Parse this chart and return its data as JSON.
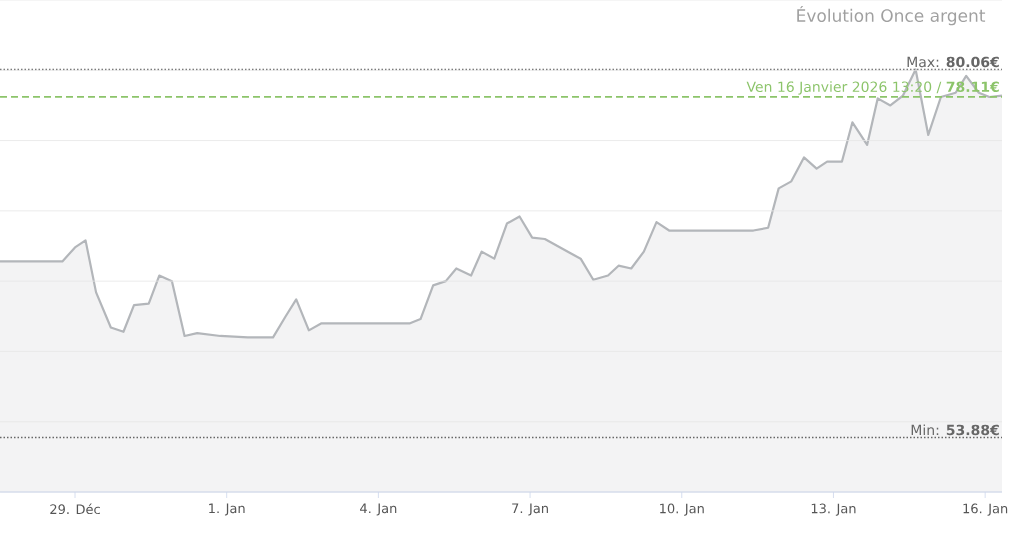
{
  "chart_data": {
    "type": "area",
    "title": "Évolution Once argent",
    "x": [
      "2025-12-27T12:24",
      "2025-12-28T18:00",
      "2025-12-29T00:00",
      "2025-12-29T05:00",
      "2025-12-29T10:00",
      "2025-12-29T17:00",
      "2025-12-29T23:00",
      "2025-12-30T04:00",
      "2025-12-30T11:00",
      "2025-12-30T16:00",
      "2025-12-30T22:00",
      "2025-12-31T04:00",
      "2025-12-31T10:00",
      "2025-12-31T21:00",
      "2026-01-01T10:00",
      "2026-01-01T22:00",
      "2026-01-02T04:00",
      "2026-01-02T09:00",
      "2026-01-02T15:00",
      "2026-01-02T21:00",
      "2026-01-03T10:00",
      "2026-01-04T15:00",
      "2026-01-04T20:00",
      "2026-01-05T02:00",
      "2026-01-05T08:00",
      "2026-01-05T13:00",
      "2026-01-05T20:00",
      "2026-01-06T01:00",
      "2026-01-06T07:00",
      "2026-01-06T13:00",
      "2026-01-06T19:00",
      "2026-01-07T01:00",
      "2026-01-07T07:00",
      "2026-01-07T19:00",
      "2026-01-08T00:00",
      "2026-01-08T06:00",
      "2026-01-08T13:00",
      "2026-01-08T18:00",
      "2026-01-09T00:00",
      "2026-01-09T06:00",
      "2026-01-09T12:00",
      "2026-01-09T18:00",
      "2026-01-10T04:00",
      "2026-01-11T10:00",
      "2026-01-11T17:00",
      "2026-01-11T22:00",
      "2026-01-12T04:00",
      "2026-01-12T10:00",
      "2026-01-12T16:00",
      "2026-01-12T21:00",
      "2026-01-13T04:00",
      "2026-01-13T09:00",
      "2026-01-13T16:00",
      "2026-01-13T21:00",
      "2026-01-14T03:00",
      "2026-01-14T09:00",
      "2026-01-14T15:00",
      "2026-01-14T21:00",
      "2026-01-15T03:00",
      "2026-01-15T10:00",
      "2026-01-15T15:00",
      "2026-01-15T21:00",
      "2026-01-16T02:00",
      "2026-01-16T08:00"
    ],
    "series": [
      {
        "color": "#b3b6ba",
        "values": [
          66.4,
          66.4,
          67.4,
          67.9,
          64.2,
          61.7,
          61.4,
          63.3,
          63.4,
          65.4,
          65.0,
          61.1,
          61.3,
          61.1,
          61.0,
          61.0,
          62.5,
          63.7,
          61.5,
          62.0,
          62.0,
          62.0,
          62.3,
          64.7,
          65.0,
          65.9,
          65.4,
          67.1,
          66.6,
          69.1,
          69.6,
          68.1,
          68.0,
          67.0,
          66.6,
          65.1,
          65.4,
          66.1,
          65.9,
          67.1,
          69.2,
          68.6,
          68.6,
          68.6,
          68.8,
          71.6,
          72.1,
          73.8,
          73.0,
          73.5,
          73.5,
          76.3,
          74.7,
          78.0,
          77.5,
          78.2,
          80.06,
          75.4,
          78.1,
          78.4,
          79.6,
          78.4,
          78.1,
          78.2
        ]
      }
    ],
    "xlim": [
      "2025-12-27T12:24",
      "2026-01-16T08:00"
    ],
    "xticks": [
      {
        "value": "2025-12-29",
        "label": "29. Déc"
      },
      {
        "value": "2026-01-01",
        "label": "1. Jan"
      },
      {
        "value": "2026-01-04",
        "label": "4. Jan"
      },
      {
        "value": "2026-01-07",
        "label": "7. Jan"
      },
      {
        "value": "2026-01-10",
        "label": "10. Jan"
      },
      {
        "value": "2026-01-13",
        "label": "13. Jan"
      },
      {
        "value": "2026-01-16",
        "label": "16. Jan"
      }
    ],
    "ylim": [
      50,
      85
    ],
    "yticks": [
      {
        "value": 50,
        "label": null
      },
      {
        "value": 55,
        "label": null
      },
      {
        "value": 60,
        "label": null
      },
      {
        "value": 65,
        "label": null
      },
      {
        "value": 70,
        "label": null
      },
      {
        "value": 75,
        "label": null
      },
      {
        "value": 80,
        "label": null
      },
      {
        "value": 85,
        "label": null
      }
    ],
    "tick_labels": "x",
    "grid": "y",
    "marker": "none",
    "ref_lines": [
      {
        "axis": "y",
        "value": 80.06,
        "label": "Max: **80.06€**",
        "color": "#666666",
        "line_style": "dotted"
      },
      {
        "axis": "y",
        "value": 78.11,
        "label": "Ven 16 Janvier 2026 13:20 / **78.11€**",
        "color": "#8cc46a",
        "line_style": "dashed"
      },
      {
        "axis": "y",
        "value": 53.88,
        "label": "Min: **53.88€**",
        "color": "#666666",
        "line_style": "dotted"
      }
    ]
  }
}
